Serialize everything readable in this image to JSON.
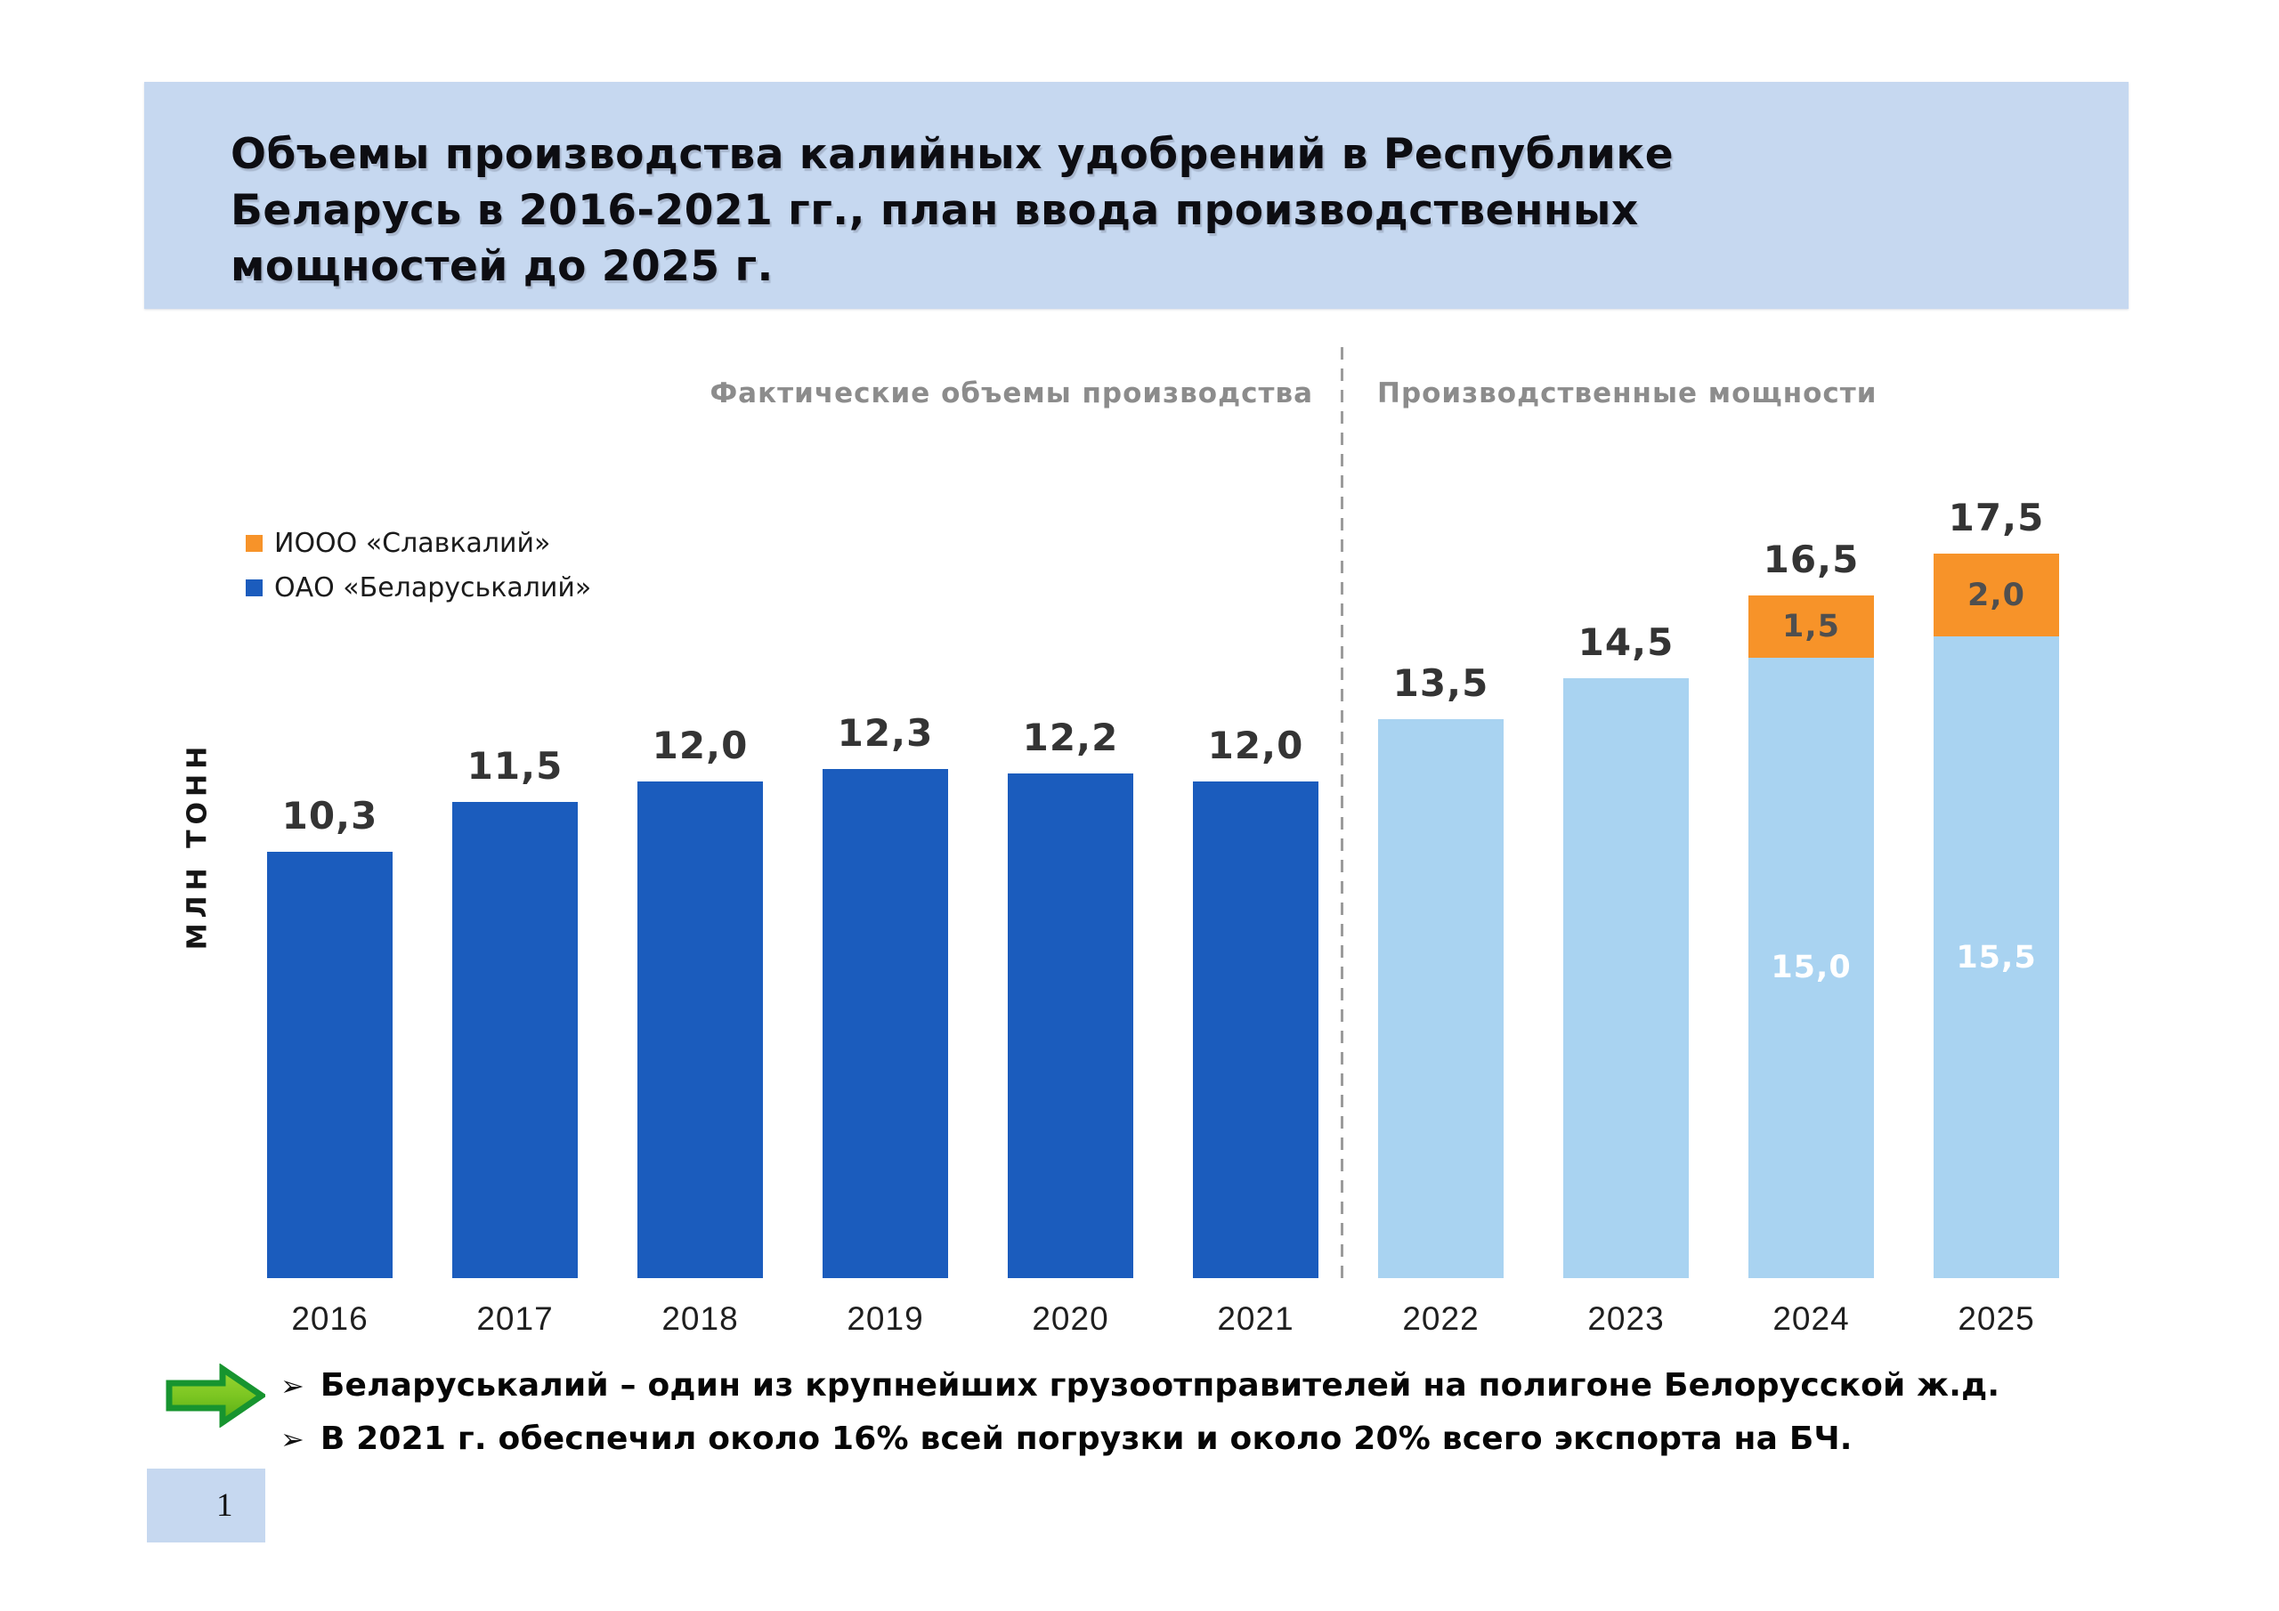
{
  "slide": {
    "title": "Объемы производства калийных удобрений в Республике\nБеларусь в 2016-2021 гг., план ввода производственных\nмощностей до 2025 г.",
    "page_number": "1"
  },
  "colors": {
    "title_band_bg": "#C6D8F0",
    "page_box_bg": "#C6D8F0",
    "fact_bar": "#1B5CBD",
    "plan_bar": "#A9D3F1",
    "slavkaliy_bar": "#F79329",
    "section_label": "#8C8C8C",
    "divider": "#9B9B9B",
    "arrow_fill": "#7CC622",
    "arrow_border": "#17942F"
  },
  "sections": {
    "left_label": "Фактические объемы производства",
    "right_label": "Производственные мощности"
  },
  "legend": {
    "items": [
      {
        "label": "ИООО «Славкалий»",
        "color_key": "slavkaliy_bar",
        "color": "#F79329"
      },
      {
        "label": "ОАО «Беларуськалий»",
        "color_key": "fact_bar",
        "color": "#1B5CBD"
      }
    ]
  },
  "ylabel": "МЛН ТОНН",
  "bullets": [
    {
      "marker": "➢",
      "text": "Беларуськалий – один из крупнейших грузоотправителей на полигоне Белорусской ж.д."
    },
    {
      "marker": "➢",
      "text": "В 2021 г. обеспечил около 16% всей погрузки и около 20% всего экспорта на БЧ."
    }
  ],
  "chart_data": {
    "type": "bar",
    "stacked": true,
    "title": "Объемы производства калийных удобрений в Республике Беларусь в 2016-2021 гг., план ввода производственных мощностей до 2025 г.",
    "ylabel": "МЛН ТОНН",
    "ylim": [
      0,
      18
    ],
    "grid": false,
    "legend_position": "upper-left",
    "categories": [
      "2016",
      "2017",
      "2018",
      "2019",
      "2020",
      "2021",
      "2022",
      "2023",
      "2024",
      "2025"
    ],
    "sections": [
      {
        "label": "Фактические объемы производства",
        "categories": [
          "2016",
          "2017",
          "2018",
          "2019",
          "2020",
          "2021"
        ]
      },
      {
        "label": "Производственные мощности",
        "categories": [
          "2022",
          "2023",
          "2024",
          "2025"
        ]
      }
    ],
    "series": [
      {
        "name": "ОАО «Беларуськалий»",
        "values": [
          10.3,
          11.5,
          12.0,
          12.3,
          12.2,
          12.0,
          13.5,
          14.5,
          15.0,
          15.5
        ]
      },
      {
        "name": "ИООО «Славкалий»",
        "values": [
          null,
          null,
          null,
          null,
          null,
          null,
          null,
          null,
          1.5,
          2.0
        ]
      }
    ],
    "totals": [
      10.3,
      11.5,
      12.0,
      12.3,
      12.2,
      12.0,
      13.5,
      14.5,
      16.5,
      17.5
    ],
    "bars": [
      {
        "category": "2016",
        "total_label": "10,3",
        "segments": [
          {
            "series": "ОАО «Беларуськалий»",
            "value": 10.3,
            "color_key": "fact_bar"
          }
        ]
      },
      {
        "category": "2017",
        "total_label": "11,5",
        "segments": [
          {
            "series": "ОАО «Беларуськалий»",
            "value": 11.5,
            "color_key": "fact_bar"
          }
        ]
      },
      {
        "category": "2018",
        "total_label": "12,0",
        "segments": [
          {
            "series": "ОАО «Беларуськалий»",
            "value": 12.0,
            "color_key": "fact_bar"
          }
        ]
      },
      {
        "category": "2019",
        "total_label": "12,3",
        "segments": [
          {
            "series": "ОАО «Беларуськалий»",
            "value": 12.3,
            "color_key": "fact_bar"
          }
        ]
      },
      {
        "category": "2020",
        "total_label": "12,2",
        "segments": [
          {
            "series": "ОАО «Беларуськалий»",
            "value": 12.2,
            "color_key": "fact_bar"
          }
        ]
      },
      {
        "category": "2021",
        "total_label": "12,0",
        "segments": [
          {
            "series": "ОАО «Беларуськалий»",
            "value": 12.0,
            "color_key": "fact_bar"
          }
        ]
      },
      {
        "category": "2022",
        "total_label": "13,5",
        "segments": [
          {
            "series": "ОАО «Беларуськалий»",
            "value": 13.5,
            "color_key": "plan_bar"
          }
        ]
      },
      {
        "category": "2023",
        "total_label": "14,5",
        "segments": [
          {
            "series": "ОАО «Беларуськалий»",
            "value": 14.5,
            "color_key": "plan_bar"
          }
        ]
      },
      {
        "category": "2024",
        "total_label": "16,5",
        "segments": [
          {
            "series": "ОАО «Беларуськалий»",
            "value": 15.0,
            "color_key": "plan_bar",
            "label": "15,0",
            "label_color": "#FFFFFF"
          },
          {
            "series": "ИООО «Славкалий»",
            "value": 1.5,
            "color_key": "slavkaliy_bar",
            "label": "1,5",
            "label_color": "#4F4F4F"
          }
        ]
      },
      {
        "category": "2025",
        "total_label": "17,5",
        "segments": [
          {
            "series": "ОАО «Беларуськалий»",
            "value": 15.5,
            "color_key": "plan_bar",
            "label": "15,5",
            "label_color": "#FFFFFF"
          },
          {
            "series": "ИООО «Славкалий»",
            "value": 2.0,
            "color_key": "slavkaliy_bar",
            "label": "2,0",
            "label_color": "#4F4F4F"
          }
        ]
      }
    ]
  }
}
